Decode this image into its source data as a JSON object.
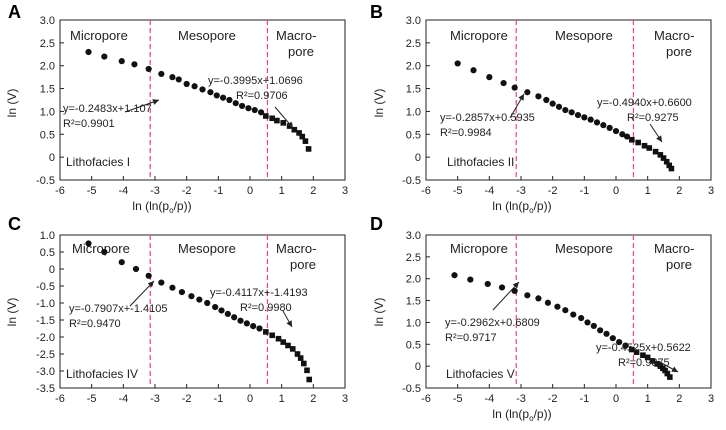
{
  "chart_data": [
    {
      "type": "scatter",
      "panel": "A",
      "xlabel": "ln (ln(po/p))",
      "ylabel": "ln (V)",
      "xlim": [
        -6,
        3
      ],
      "ylim": [
        -0.5,
        3.0
      ],
      "xticks": [
        -6,
        -5,
        -4,
        -3,
        -2,
        -1,
        0,
        1,
        2,
        3
      ],
      "yticks": [
        -0.5,
        0,
        0.5,
        1.0,
        1.5,
        2.0,
        2.5,
        3.0
      ],
      "ytick_labels": [
        "-0.5",
        "0",
        "0.5",
        "1.0",
        "1.5",
        "2.0",
        "2.5",
        "3.0"
      ],
      "xtick_labels": [
        "-6",
        "-5",
        "-4",
        "-3",
        "-2",
        "-1",
        "0",
        "1",
        "2",
        "3"
      ],
      "boundaries": [
        -3.15,
        0.55
      ],
      "regions": [
        "Micropore",
        "Mesopore",
        "Macro-",
        "pore"
      ],
      "facies": "Lithofacies I",
      "fits": [
        {
          "equation": "y=-0.2483x+1.107",
          "r2": "R²=0.9901"
        },
        {
          "equation": "y=-0.3995x+1.0696",
          "r2": "R²=0.9706"
        }
      ],
      "circles": {
        "x": [
          -5.1,
          -4.6,
          -4.05,
          -3.65,
          -3.2,
          -2.8,
          -2.45,
          -2.25,
          -2.0,
          -1.75,
          -1.5,
          -1.25,
          -1.05,
          -0.85,
          -0.65,
          -0.45,
          -0.25,
          -0.05,
          0.15,
          0.35
        ],
        "y": [
          2.3,
          2.2,
          2.1,
          2.03,
          1.93,
          1.82,
          1.75,
          1.7,
          1.6,
          1.55,
          1.48,
          1.42,
          1.35,
          1.3,
          1.25,
          1.18,
          1.12,
          1.07,
          1.03,
          0.98
        ]
      },
      "squares": {
        "x": [
          0.5,
          0.7,
          0.85,
          1.05,
          1.25,
          1.4,
          1.55,
          1.65,
          1.75,
          1.85
        ],
        "y": [
          0.9,
          0.85,
          0.8,
          0.75,
          0.68,
          0.6,
          0.53,
          0.45,
          0.35,
          0.18
        ]
      }
    },
    {
      "type": "scatter",
      "panel": "B",
      "xlabel": "ln (ln(po/p))",
      "ylabel": "ln (V)",
      "xlim": [
        -6,
        3
      ],
      "ylim": [
        -0.5,
        3.0
      ],
      "xticks": [
        -6,
        -5,
        -4,
        -3,
        -2,
        -1,
        0,
        1,
        2,
        3
      ],
      "yticks": [
        -0.5,
        0,
        0.5,
        1.0,
        1.5,
        2.0,
        2.5,
        3.0
      ],
      "ytick_labels": [
        "-0.5",
        "0",
        "0.5",
        "1.0",
        "1.5",
        "2.0",
        "2.5",
        "3.0"
      ],
      "xtick_labels": [
        "-6",
        "-5",
        "-4",
        "-3",
        "-2",
        "-1",
        "0",
        "1",
        "2",
        "3"
      ],
      "boundaries": [
        -3.15,
        0.55
      ],
      "regions": [
        "Micropore",
        "Mesopore",
        "Macro-",
        "pore"
      ],
      "facies": "Lithofacies II",
      "fits": [
        {
          "equation": "y=-0.2857x+0.5935",
          "r2": "R²=0.9984"
        },
        {
          "equation": "y=-0.4940x+0.6600",
          "r2": "R²=0.9275"
        }
      ],
      "circles": {
        "x": [
          -5.0,
          -4.5,
          -4.0,
          -3.55,
          -3.2,
          -2.8,
          -2.45,
          -2.2,
          -2.0,
          -1.8,
          -1.6,
          -1.4,
          -1.2,
          -1.0,
          -0.8,
          -0.6,
          -0.4,
          -0.2,
          0.0,
          0.2,
          0.35
        ],
        "y": [
          2.05,
          1.9,
          1.75,
          1.62,
          1.52,
          1.42,
          1.33,
          1.25,
          1.17,
          1.1,
          1.03,
          0.98,
          0.92,
          0.87,
          0.82,
          0.76,
          0.7,
          0.64,
          0.57,
          0.5,
          0.45
        ]
      },
      "squares": {
        "x": [
          0.5,
          0.7,
          0.9,
          1.05,
          1.25,
          1.4,
          1.5,
          1.6,
          1.68,
          1.75
        ],
        "y": [
          0.38,
          0.32,
          0.25,
          0.2,
          0.12,
          0.05,
          -0.02,
          -0.1,
          -0.18,
          -0.25
        ]
      }
    },
    {
      "type": "scatter",
      "panel": "C",
      "xlabel": "",
      "ylabel": "ln (V)",
      "xlim": [
        -6,
        3
      ],
      "ylim": [
        -3.5,
        1.0
      ],
      "xticks": [
        -6,
        -5,
        -4,
        -3,
        -2,
        -1,
        0,
        1,
        2,
        3
      ],
      "yticks": [
        -3.5,
        -3.0,
        -2.5,
        -2.0,
        -1.5,
        -1.0,
        -0.5,
        0,
        0.5,
        1.0
      ],
      "ytick_labels": [
        "-3.5",
        "-3.0",
        "-2.5",
        "-2.0",
        "-1.5",
        "-1.0",
        "-0.5",
        "0",
        "0.5",
        "1.0"
      ],
      "xtick_labels": [
        "-6",
        "-5",
        "-4",
        "-3",
        "-2",
        "-1",
        "0",
        "1",
        "2",
        "3"
      ],
      "boundaries": [
        -3.15,
        0.55
      ],
      "regions": [
        "Micropore",
        "Mesopore",
        "Macro-",
        "pore"
      ],
      "facies": "Lithofacies IV",
      "fits": [
        {
          "equation": "y=-0.7907x+-1.4105",
          "r2": "R²=0.9470"
        },
        {
          "equation": "y=-0.4117x+-1.4193",
          "r2": "R²=0.9980"
        }
      ],
      "circles": {
        "x": [
          -5.1,
          -4.6,
          -4.05,
          -3.6,
          -3.2,
          -2.8,
          -2.45,
          -2.15,
          -1.85,
          -1.6,
          -1.35,
          -1.1,
          -0.9,
          -0.7,
          -0.5,
          -0.3,
          -0.1,
          0.1,
          0.3
        ],
        "y": [
          0.75,
          0.5,
          0.2,
          0.0,
          -0.2,
          -0.4,
          -0.55,
          -0.68,
          -0.8,
          -0.9,
          -1.0,
          -1.12,
          -1.22,
          -1.32,
          -1.42,
          -1.52,
          -1.6,
          -1.68,
          -1.75
        ]
      },
      "squares": {
        "x": [
          0.5,
          0.7,
          0.9,
          1.05,
          1.2,
          1.35,
          1.5,
          1.6,
          1.7,
          1.8,
          1.87
        ],
        "y": [
          -1.85,
          -1.95,
          -2.05,
          -2.15,
          -2.25,
          -2.35,
          -2.5,
          -2.62,
          -2.78,
          -2.98,
          -3.25
        ]
      }
    },
    {
      "type": "scatter",
      "panel": "D",
      "xlabel": "ln (ln(po/p))",
      "ylabel": "ln (V)",
      "xlim": [
        -6,
        3
      ],
      "ylim": [
        -0.5,
        3.0
      ],
      "xticks": [
        -6,
        -5,
        -4,
        -3,
        -2,
        -1,
        0,
        1,
        2,
        3
      ],
      "yticks": [
        -0.5,
        0,
        0.5,
        1.0,
        1.5,
        2.0,
        2.5,
        3.0
      ],
      "ytick_labels": [
        "-0.5",
        "0",
        "0.5",
        "1.0",
        "1.5",
        "2.0",
        "2.5",
        "3.0"
      ],
      "xtick_labels": [
        "-6",
        "-5",
        "-4",
        "-3",
        "-2",
        "-1",
        "0",
        "1",
        "2",
        "3"
      ],
      "boundaries": [
        -3.15,
        0.55
      ],
      "regions": [
        "Micropore",
        "Mesopore",
        "Macro-",
        "pore"
      ],
      "facies": "Lithofacies V",
      "fits": [
        {
          "equation": "y=-0.2962x+0.6809",
          "r2": "R²=0.9717"
        },
        {
          "equation": "y=-0.4525x+0.5622",
          "r2": "R²=0.9875"
        }
      ],
      "circles": {
        "x": [
          -5.1,
          -4.6,
          -4.05,
          -3.6,
          -3.2,
          -2.8,
          -2.45,
          -2.15,
          -1.85,
          -1.6,
          -1.35,
          -1.1,
          -0.9,
          -0.7,
          -0.5,
          -0.3,
          -0.1,
          0.1,
          0.3
        ],
        "y": [
          2.08,
          1.98,
          1.88,
          1.8,
          1.72,
          1.62,
          1.55,
          1.45,
          1.36,
          1.28,
          1.18,
          1.1,
          1.0,
          0.92,
          0.82,
          0.74,
          0.64,
          0.55,
          0.47
        ]
      },
      "squares": {
        "x": [
          0.5,
          0.65,
          0.85,
          1.0,
          1.15,
          1.3,
          1.4,
          1.48,
          1.55,
          1.62,
          1.7
        ],
        "y": [
          0.38,
          0.32,
          0.25,
          0.2,
          0.12,
          0.05,
          0.0,
          -0.05,
          -0.1,
          -0.17,
          -0.25
        ]
      }
    }
  ]
}
